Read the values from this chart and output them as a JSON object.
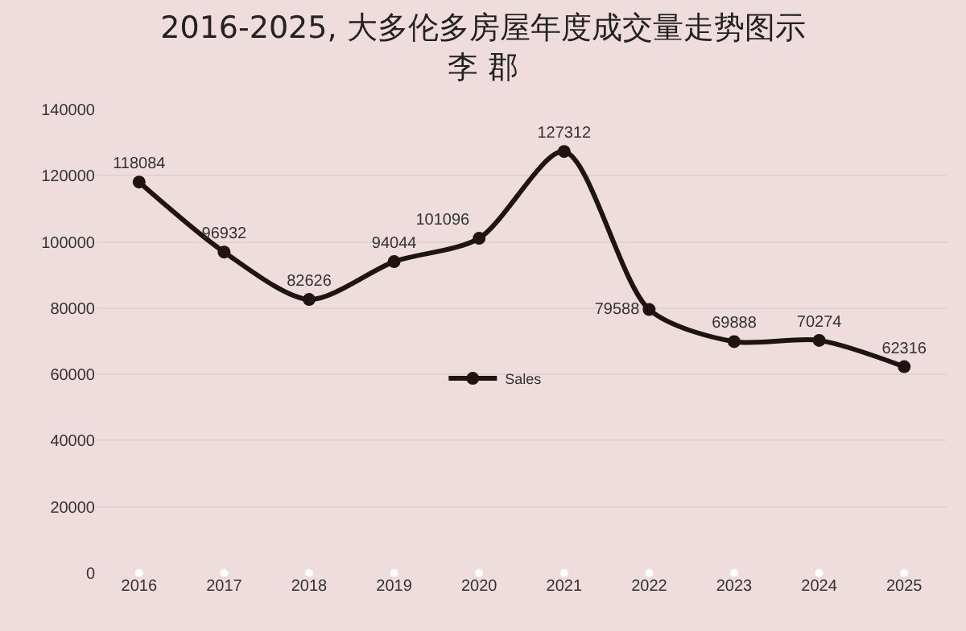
{
  "chart_data": {
    "type": "line",
    "title": "2016-2025, 大多伦多房屋年度成交量走势图示",
    "subtitle": "李 郡",
    "categories": [
      "2016",
      "2017",
      "2018",
      "2019",
      "2020",
      "2021",
      "2022",
      "2023",
      "2024",
      "2025"
    ],
    "series": [
      {
        "name": "Sales",
        "color": "#1e1512",
        "values": [
          118084,
          96932,
          82626,
          94044,
          101096,
          127312,
          79588,
          69888,
          70274,
          62316
        ],
        "value_labels": [
          "118084",
          "96932",
          "82626",
          "94044",
          "101096",
          "127312",
          "79588",
          "69888",
          "70274",
          "62316"
        ]
      },
      {
        "type": "scatter",
        "color": "#ffffff",
        "values": [
          0,
          0,
          0,
          0,
          0,
          0,
          0,
          0,
          0,
          0
        ]
      }
    ],
    "ylim": [
      0,
      140000
    ],
    "yticks": [
      0,
      20000,
      40000,
      60000,
      80000,
      100000,
      120000,
      140000
    ],
    "grid": "y",
    "legend": "center",
    "marker": "circle",
    "line_style": "solid"
  }
}
